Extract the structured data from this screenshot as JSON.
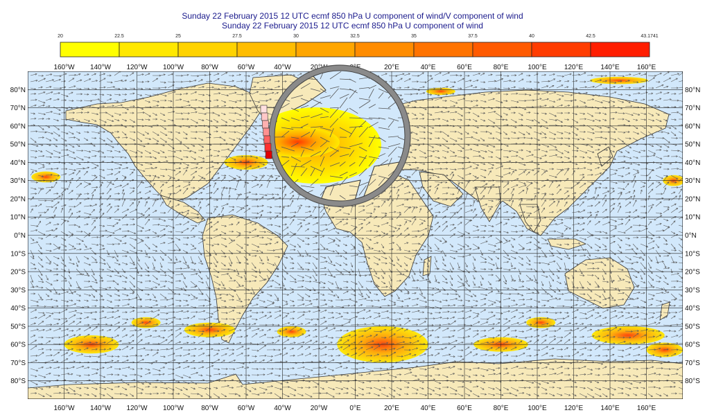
{
  "titles": {
    "line1": "Sunday 22 February 2015 12 UTC ecmf 850 hPa  U component of wind/V component of wind",
    "line2": "Sunday 22 February 2015 12 UTC ecmf 850 hPa  U component of wind"
  },
  "legend": {
    "labels": [
      "20",
      "22.5",
      "25",
      "27.5",
      "30",
      "32.5",
      "35",
      "37.5",
      "40",
      "42.5",
      "43.1741"
    ],
    "colors": [
      "#ffff00",
      "#ffe800",
      "#ffd300",
      "#ffbd00",
      "#ffa600",
      "#ff8c00",
      "#ff7300",
      "#ff5a00",
      "#ff3c00",
      "#ff1e00"
    ]
  },
  "map": {
    "ocean_color": "#d2e8fb",
    "land_color": "#f7e9b9",
    "lon_labels_top": [
      "160°W",
      "140°W",
      "120°W",
      "100°W",
      "80°W",
      "60°W",
      "40°W",
      "20°W",
      "0°E",
      "20°E",
      "40°E",
      "60°E",
      "80°E",
      "100°E",
      "120°E",
      "140°E",
      "160°E"
    ],
    "lon_labels_bottom": [
      "160°W",
      "140°W",
      "120°W",
      "100°W",
      "80°W",
      "60°W",
      "40°W",
      "20°W",
      "0°E",
      "20°E",
      "40°E",
      "60°E",
      "80°E",
      "100°E",
      "120°E",
      "140°E",
      "160°E"
    ],
    "lat_labels": [
      "80°N",
      "70°N",
      "60°N",
      "50°N",
      "40°N",
      "30°N",
      "20°N",
      "10°N",
      "0°N",
      "10°S",
      "20°S",
      "30°S",
      "40°S",
      "50°S",
      "60°S",
      "70°S",
      "80°S"
    ],
    "wind_zones": [
      {
        "lon": -145,
        "lat": -60,
        "rlon": 15,
        "rlat": 5
      },
      {
        "lon": -80,
        "lat": -52,
        "rlon": 14,
        "rlat": 4
      },
      {
        "lon": -115,
        "lat": -48,
        "rlon": 8,
        "rlat": 3
      },
      {
        "lon": -35,
        "lat": -53,
        "rlon": 8,
        "rlat": 3
      },
      {
        "lon": 15,
        "lat": -60,
        "rlon": 25,
        "rlat": 10
      },
      {
        "lon": 80,
        "lat": -60,
        "rlon": 15,
        "rlat": 4
      },
      {
        "lon": 150,
        "lat": -55,
        "rlon": 20,
        "rlat": 5
      },
      {
        "lon": 170,
        "lat": -63,
        "rlon": 10,
        "rlat": 4
      },
      {
        "lon": 102,
        "lat": -48,
        "rlon": 8,
        "rlat": 3
      },
      {
        "lon": -60,
        "lat": 40,
        "rlon": 12,
        "rlat": 4
      },
      {
        "lon": 47,
        "lat": 79,
        "rlon": 8,
        "rlat": 2
      },
      {
        "lon": 145,
        "lat": 85,
        "rlon": 16,
        "rlat": 2
      },
      {
        "lon": 175,
        "lat": 30,
        "rlon": 6,
        "rlat": 3
      },
      {
        "lon": -170,
        "lat": 32,
        "rlon": 8,
        "rlat": 3
      }
    ],
    "magnifier": {
      "center_lon": -25,
      "center_lat": 53,
      "radius_px": 100,
      "feature": {
        "lon": -30,
        "lat": 52,
        "rlon": 20,
        "rlat": 10
      }
    }
  }
}
